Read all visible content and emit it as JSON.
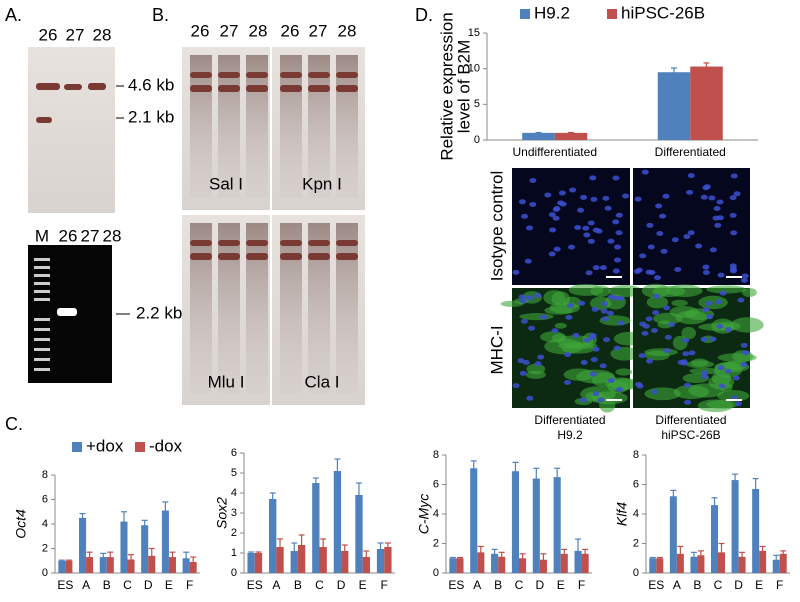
{
  "panel_labels": [
    "A.",
    "B.",
    "C.",
    "D."
  ],
  "panel_a": {
    "lanes": [
      "26",
      "27",
      "28"
    ],
    "markers": [
      "4.6 kb",
      "2.1 kb"
    ],
    "gel_lanes": [
      "M",
      "26",
      "27",
      "28"
    ],
    "gel_marker": "2.2 kb"
  },
  "panel_b": {
    "lanes": [
      "26",
      "27",
      "28",
      "26",
      "27",
      "28"
    ],
    "enzymes": [
      "Sal I",
      "Kpn I",
      "Mlu I",
      "Cla I"
    ]
  },
  "panel_d_images": {
    "rows": [
      "Isotype control",
      "MHC-I"
    ],
    "columns": [
      [
        "Differentiated",
        "H9.2"
      ],
      [
        "Differentiated",
        "hiPSC-26B"
      ]
    ]
  },
  "chart_data": [
    {
      "type": "bar",
      "ylabel": [
        "Relative expression",
        "level of B2M"
      ],
      "categories": [
        "Undifferentiated",
        "Differentiated"
      ],
      "series": [
        {
          "name": "H9.2",
          "color": "#4f81bd",
          "values": [
            1.0,
            9.5
          ],
          "errors": [
            0.05,
            0.6
          ]
        },
        {
          "name": "hiPSC-26B",
          "color": "#c0504d",
          "values": [
            1.0,
            10.3
          ],
          "errors": [
            0.05,
            0.5
          ]
        }
      ],
      "ylim": [
        0,
        15
      ],
      "yticks": [
        0,
        5,
        10,
        15
      ],
      "legend": "top"
    },
    {
      "type": "bar",
      "ylabel": "Oct4",
      "categories": [
        "ES",
        "A",
        "B",
        "C",
        "D",
        "E",
        "F"
      ],
      "series": [
        {
          "name": "+dox",
          "color": "#4f81bd",
          "values": [
            1.0,
            4.5,
            1.3,
            4.2,
            3.9,
            5.1,
            1.2
          ],
          "errors": [
            0.05,
            0.35,
            0.3,
            0.8,
            0.4,
            0.7,
            0.5
          ]
        },
        {
          "name": "-dox",
          "color": "#c0504d",
          "values": [
            1.0,
            1.3,
            1.3,
            1.1,
            1.4,
            1.3,
            0.9
          ],
          "errors": [
            0.05,
            0.4,
            0.4,
            0.4,
            0.6,
            0.4,
            0.4
          ]
        }
      ],
      "ylim": [
        0,
        8
      ],
      "yticks": [
        0,
        2,
        4,
        6,
        8
      ],
      "legend": "top"
    },
    {
      "type": "bar",
      "ylabel": "Sox2",
      "categories": [
        "ES",
        "A",
        "B",
        "C",
        "D",
        "E",
        "F"
      ],
      "series": [
        {
          "color": "#4f81bd",
          "values": [
            1.0,
            3.7,
            1.1,
            4.5,
            5.1,
            3.9,
            1.2
          ],
          "errors": [
            0.05,
            0.3,
            0.4,
            0.25,
            0.6,
            0.6,
            0.3
          ]
        },
        {
          "color": "#c0504d",
          "values": [
            1.0,
            1.3,
            1.4,
            1.3,
            1.1,
            0.8,
            1.3
          ],
          "errors": [
            0.05,
            0.4,
            0.5,
            0.4,
            0.3,
            0.3,
            0.2
          ]
        }
      ],
      "ylim": [
        0,
        6
      ],
      "yticks": [
        0,
        1,
        2,
        3,
        4,
        5,
        6
      ]
    },
    {
      "type": "bar",
      "ylabel": "C-Myc",
      "categories": [
        "ES",
        "A",
        "B",
        "C",
        "D",
        "E",
        "F"
      ],
      "series": [
        {
          "color": "#4f81bd",
          "values": [
            1.0,
            7.1,
            1.3,
            6.9,
            6.4,
            6.5,
            1.5
          ],
          "errors": [
            0.05,
            0.5,
            0.3,
            0.6,
            0.7,
            0.6,
            0.8
          ]
        },
        {
          "color": "#c0504d",
          "values": [
            1.0,
            1.4,
            1.1,
            1.0,
            0.9,
            1.3,
            1.3
          ],
          "errors": [
            0.05,
            0.4,
            0.3,
            0.3,
            0.4,
            0.3,
            0.3
          ]
        }
      ],
      "ylim": [
        0,
        8
      ],
      "yticks": [
        0,
        2,
        4,
        6,
        8
      ]
    },
    {
      "type": "bar",
      "ylabel": "Klf4",
      "categories": [
        "ES",
        "A",
        "B",
        "C",
        "D",
        "E",
        "F"
      ],
      "series": [
        {
          "color": "#4f81bd",
          "values": [
            1.0,
            5.2,
            1.1,
            4.6,
            6.3,
            5.7,
            0.9
          ],
          "errors": [
            0.05,
            0.4,
            0.3,
            0.5,
            0.4,
            0.7,
            0.3
          ]
        },
        {
          "color": "#c0504d",
          "values": [
            1.0,
            1.3,
            1.2,
            1.4,
            1.1,
            1.5,
            1.3
          ],
          "errors": [
            0.05,
            0.5,
            0.3,
            0.6,
            0.3,
            0.3,
            0.2
          ]
        }
      ],
      "ylim": [
        0,
        8
      ],
      "yticks": [
        0,
        2,
        4,
        6,
        8
      ]
    }
  ]
}
